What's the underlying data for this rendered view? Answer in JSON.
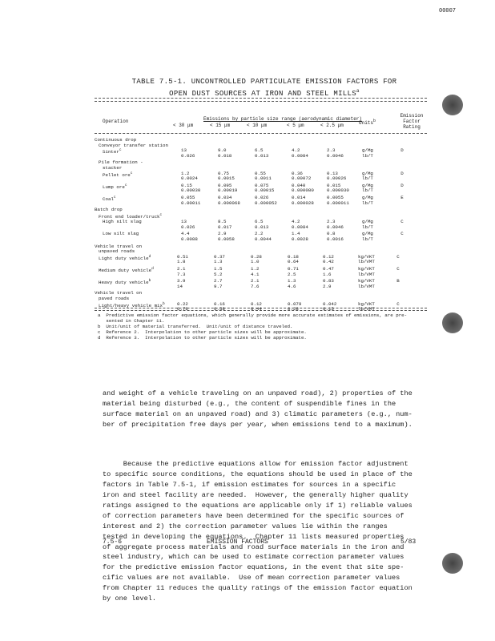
{
  "doc_id": "00007",
  "table": {
    "title_line1": "TABLE 7.5-1.  UNCONTROLLED PARTICULATE EMISSION FACTORS FOR",
    "title_line2": "OPEN DUST SOURCES AT IRON AND STEEL MILLS",
    "title_footnote": "a",
    "header": {
      "operation": "Operation",
      "span": "Emissions by particle size range (aerodynamic diameter)",
      "sizes": [
        "< 30 μm",
        "< 15 μm",
        "< 10 μm",
        "< 5 μm",
        "< 2.5 μm"
      ],
      "units": "Units",
      "units_footnote": "b",
      "rating": "Emission Factor Rating"
    },
    "rows": [
      {
        "label": "Continuous drop",
        "indent": 0
      },
      {
        "label": "Conveyor transfer station",
        "indent": 1
      },
      {
        "label": "Sinter",
        "sup": "c",
        "indent": 2,
        "values": [
          [
            "13",
            "9.0",
            "6.5",
            "4.2",
            "2.3",
            "g/Mg",
            "D"
          ],
          [
            "0.026",
            "0.018",
            "0.013",
            "0.0084",
            "0.0046",
            "lb/T",
            ""
          ]
        ]
      },
      {
        "label": "Pile formation -",
        "indent": 1
      },
      {
        "label": "stacker",
        "indent": 2
      },
      {
        "label": "Pellet ore",
        "sup": "c",
        "indent": 2,
        "values": [
          [
            "1.2",
            "0.75",
            "0.55",
            "0.36",
            "0.13",
            "g/Mg",
            "D"
          ],
          [
            "0.0024",
            "0.0015",
            "0.0011",
            "0.00072",
            "0.00026",
            "lb/T",
            ""
          ]
        ]
      },
      {
        "label": "Lump ore",
        "sup": "c",
        "indent": 2,
        "values": [
          [
            "0.15",
            "0.095",
            "0.075",
            "0.040",
            "0.015",
            "g/Mg",
            "D"
          ],
          [
            "0.00030",
            "0.00019",
            "0.00015",
            "0.000080",
            "0.000030",
            "lb/T",
            ""
          ]
        ]
      },
      {
        "label": "Coal",
        "sup": "c",
        "indent": 2,
        "values": [
          [
            "0.055",
            "0.034",
            "0.026",
            "0.014",
            "0.0055",
            "g/Mg",
            "E"
          ],
          [
            "0.00011",
            "0.000068",
            "0.000052",
            "0.000028",
            "0.000011",
            "lb/T",
            ""
          ]
        ]
      },
      {
        "label": "Batch drop",
        "indent": 0
      },
      {
        "label": "Front end loader/truck",
        "sup": "c",
        "indent": 1
      },
      {
        "label": "High silt slag",
        "indent": 2,
        "values": [
          [
            "13",
            "8.5",
            "6.5",
            "4.2",
            "2.3",
            "g/Mg",
            "C"
          ],
          [
            "0.026",
            "0.017",
            "0.013",
            "0.0084",
            "0.0046",
            "lb/T",
            ""
          ]
        ]
      },
      {
        "label": "Low silt slag",
        "indent": 2,
        "values": [
          [
            "4.4",
            "2.9",
            "2.2",
            "1.4",
            "0.8",
            "g/Mg",
            "C"
          ],
          [
            "0.0088",
            "0.0058",
            "0.0044",
            "0.0028",
            "0.0016",
            "lb/T",
            ""
          ]
        ]
      },
      {
        "label": "Vehicle travel on",
        "indent": 0
      },
      {
        "label": "unpaved roads",
        "indent": 1
      },
      {
        "label": "Light duty vehicle",
        "sup": "d",
        "indent": 1,
        "values": [
          [
            "0.51",
            "0.37",
            "0.28",
            "0.18",
            "0.12",
            "kg/VKT",
            "C"
          ],
          [
            "1.8",
            "1.3",
            "1.0",
            "0.64",
            "0.42",
            "lb/VMT",
            ""
          ]
        ]
      },
      {
        "label": "Medium duty vehicle",
        "sup": "d",
        "indent": 1,
        "values": [
          [
            "2.1",
            "1.5",
            "1.2",
            "0.71",
            "0.47",
            "kg/VKT",
            "C"
          ],
          [
            "7.3",
            "5.2",
            "4.1",
            "2.5",
            "1.6",
            "lb/VMT",
            ""
          ]
        ]
      },
      {
        "label": "Heavy duty vehicle",
        "sup": "b",
        "indent": 1,
        "values": [
          [
            "3.9",
            "2.7",
            "2.1",
            "1.3",
            "0.83",
            "kg/VKT",
            "B"
          ],
          [
            "14",
            "9.7",
            "7.6",
            "4.6",
            "2.9",
            "lb/VMT",
            ""
          ]
        ]
      },
      {
        "label": "Vehicle travel on",
        "indent": 0
      },
      {
        "label": "paved roads",
        "indent": 1
      },
      {
        "label": "Light/heavy vehicle mix",
        "sup": "b",
        "indent": 1,
        "values": [
          [
            "0.22",
            "0.16",
            "0.12",
            "0.079",
            "0.042",
            "kg/VKT",
            "C"
          ],
          [
            "0.78",
            "0.58",
            "0.44",
            "0.28",
            "0.15",
            "lb/VMT",
            ""
          ]
        ]
      }
    ],
    "footnotes": [
      "a  Predictive emission factor equations, which generally provide more accurate estimates of emissions, are pre-",
      "   sented in Chapter 11.",
      "b  Unit/unit of material transferred.  Unit/unit of distance traveled.",
      "c  Reference 2.  Interpolation to other particle sizes will be approximate.",
      "d  Reference 3.  Interpolation to other particle sizes will be approximate."
    ]
  },
  "body": {
    "paragraph1": [
      "and weight of a vehicle traveling on an unpaved road), 2) properties of the",
      "material being disturbed (e.g., the content of suspendible fines in the",
      "surface material on an unpaved road) and 3) climatic parameters (e.g., num-",
      "ber of precipitation free days per year, when emissions tend to a maximum)."
    ],
    "paragraph2": [
      "     Because the predictive equations allow for emission factor adjustment",
      "to specific source conditions, the equations should be used in place of the",
      "factors in Table 7.5-1, if emission estimates for sources in a specific",
      "iron and steel facility are needed.  However, the generally higher quality",
      "ratings assigned to the equations are applicable only if 1) reliable values",
      "of correction parameters have been determined for the specific sources of",
      "interest and 2) the correction parameter values lie within the ranges",
      "tested in developing the equations.  Chapter 11 lists measured properties",
      "of aggregate process materials and road surface materials in the iron and",
      "steel industry, which can be used to estimate correction parameter values",
      "for the predictive emission factor equations, in the event that site spe-",
      "cific values are not available.  Use of mean correction parameter values",
      "from Chapter 11 reduces the quality ratings of the emission factor equation",
      "by one level."
    ]
  },
  "footer": {
    "page": "7.5-6",
    "center": "EMISSION FACTORS",
    "date": "5/83"
  }
}
